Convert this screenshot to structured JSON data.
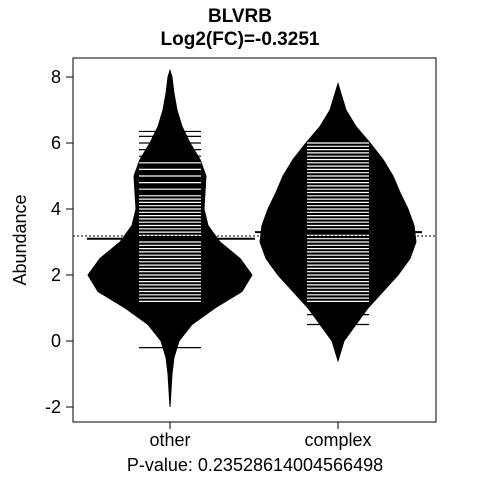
{
  "chart_data": {
    "type": "beanplot",
    "title": "BLVRB",
    "subtitle": "Log2(FC)=-0.3251",
    "xlabel": "",
    "ylabel": "Abundance",
    "footer": "P-value: 0.23528614004566498",
    "ylim": [
      -2.4,
      8.5
    ],
    "yticks": [
      -2,
      0,
      2,
      4,
      6,
      8
    ],
    "overall_mean": 3.18,
    "categories": [
      "other",
      "complex"
    ],
    "groups": [
      {
        "name": "other",
        "mean": 3.1,
        "density": [
          [
            -2.0,
            0
          ],
          [
            -1.5,
            1
          ],
          [
            -1.0,
            2
          ],
          [
            -0.5,
            4
          ],
          [
            0,
            9
          ],
          [
            0.5,
            22
          ],
          [
            1.0,
            45
          ],
          [
            1.5,
            72
          ],
          [
            2.0,
            82
          ],
          [
            2.5,
            70
          ],
          [
            3.0,
            50
          ],
          [
            3.5,
            38
          ],
          [
            4.0,
            34
          ],
          [
            4.5,
            35
          ],
          [
            5.0,
            36
          ],
          [
            5.5,
            30
          ],
          [
            6.0,
            20
          ],
          [
            6.5,
            12
          ],
          [
            7.0,
            7
          ],
          [
            7.5,
            4
          ],
          [
            8.0,
            2
          ],
          [
            8.2,
            0
          ]
        ],
        "points": [
          -0.2,
          1.2,
          1.3,
          1.4,
          1.5,
          1.6,
          1.7,
          1.8,
          1.9,
          2.0,
          2.1,
          2.2,
          2.3,
          2.4,
          2.5,
          2.6,
          2.7,
          2.8,
          2.9,
          3.0,
          3.1,
          3.2,
          3.3,
          3.4,
          3.5,
          3.6,
          3.7,
          3.8,
          3.9,
          4.0,
          4.1,
          4.2,
          4.3,
          4.4,
          4.6,
          4.8,
          5.0,
          5.2,
          5.4,
          5.6,
          5.8,
          6.0,
          6.2,
          6.35
        ]
      },
      {
        "name": "complex",
        "mean": 3.3,
        "density": [
          [
            -0.6,
            0
          ],
          [
            0,
            6
          ],
          [
            0.5,
            18
          ],
          [
            1.0,
            30
          ],
          [
            1.5,
            45
          ],
          [
            2.0,
            60
          ],
          [
            2.5,
            72
          ],
          [
            3.0,
            78
          ],
          [
            3.5,
            76
          ],
          [
            4.0,
            70
          ],
          [
            4.5,
            62
          ],
          [
            5.0,
            55
          ],
          [
            5.5,
            45
          ],
          [
            6.0,
            32
          ],
          [
            6.5,
            18
          ],
          [
            7.0,
            8
          ],
          [
            7.5,
            3
          ],
          [
            7.8,
            0
          ]
        ],
        "points": [
          0.5,
          0.8,
          1.2,
          1.3,
          1.4,
          1.5,
          1.6,
          1.7,
          1.8,
          1.9,
          2.0,
          2.1,
          2.2,
          2.3,
          2.4,
          2.5,
          2.6,
          2.7,
          2.8,
          2.9,
          3.0,
          3.1,
          3.2,
          3.3,
          3.4,
          3.5,
          3.6,
          3.7,
          3.8,
          3.9,
          4.0,
          4.1,
          4.2,
          4.3,
          4.4,
          4.5,
          4.6,
          4.7,
          4.8,
          4.9,
          5.0,
          5.1,
          5.2,
          5.3,
          5.4,
          5.5,
          5.6,
          5.7,
          5.8,
          5.9,
          6.0,
          6.05
        ]
      }
    ]
  }
}
